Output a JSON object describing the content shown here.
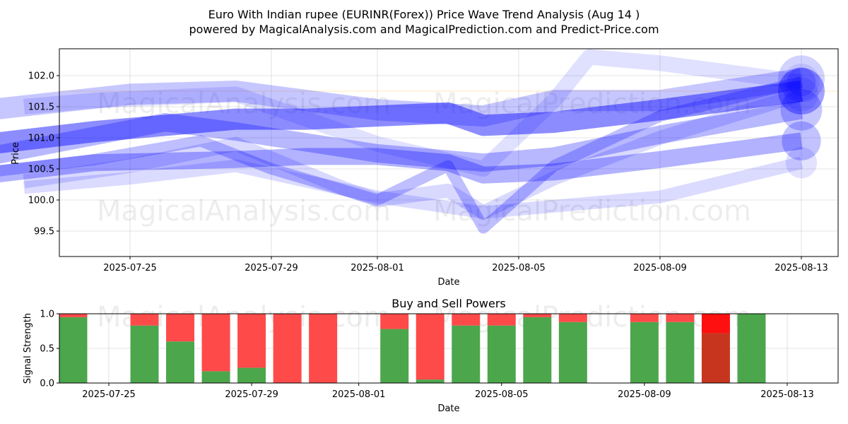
{
  "title_line1": "Euro With Indian rupee (EURINR(Forex)) Price Wave Trend Analysis (Aug 14 )",
  "title_line2": "powered by MagicalAnalysis.com and MagicalPrediction.com and Predict-Price.com",
  "watermarks": [
    "MagicalAnalysis.com",
    "MagicalPrediction.com"
  ],
  "colors": {
    "wave": "#0000ff",
    "buy": "#4ca64c",
    "sell": "#ff4a4a",
    "sell_strong": "#ff1010",
    "buy_strong": "#c8351e"
  },
  "chart_data": [
    {
      "type": "area",
      "title": "",
      "xlabel": "Date",
      "ylabel": "Price",
      "ylim": [
        99.1,
        102.45
      ],
      "xlim": [
        "2025-07-21",
        "2025-08-14"
      ],
      "grid": true,
      "x_ticks": [
        "2025-07-25",
        "2025-07-29",
        "2025-08-01",
        "2025-08-05",
        "2025-08-09",
        "2025-08-13"
      ],
      "y_ticks": [
        99.5,
        100.0,
        100.5,
        101.0,
        101.5,
        102.0
      ],
      "series": [
        {
          "x": [
            "2025-07-21",
            "2025-07-25",
            "2025-07-28",
            "2025-08-01",
            "2025-08-04",
            "2025-08-06",
            "2025-08-09",
            "2025-08-13"
          ],
          "values": [
            101.45,
            101.7,
            101.75,
            101.45,
            101.35,
            101.6,
            101.6,
            101.95
          ]
        },
        {
          "x": [
            "2025-07-21",
            "2025-07-24",
            "2025-07-28",
            "2025-07-30",
            "2025-08-01",
            "2025-08-03",
            "2025-08-04",
            "2025-08-06",
            "2025-08-09",
            "2025-08-13"
          ],
          "values": [
            100.9,
            101.1,
            101.3,
            101.3,
            101.35,
            101.4,
            101.2,
            101.25,
            101.45,
            101.75
          ]
        },
        {
          "x": [
            "2025-07-21",
            "2025-07-26",
            "2025-07-28",
            "2025-08-01",
            "2025-08-04",
            "2025-08-06",
            "2025-08-09",
            "2025-08-13"
          ],
          "values": [
            100.7,
            101.25,
            101.1,
            100.75,
            100.6,
            100.7,
            101.05,
            101.45
          ]
        },
        {
          "x": [
            "2025-07-21",
            "2025-07-24",
            "2025-07-28",
            "2025-07-30",
            "2025-08-01",
            "2025-08-03",
            "2025-08-04",
            "2025-08-06",
            "2025-08-09",
            "2025-08-13"
          ],
          "values": [
            100.4,
            100.6,
            100.65,
            100.7,
            100.7,
            100.6,
            100.4,
            100.45,
            100.65,
            100.95
          ]
        },
        {
          "x": [
            "2025-07-21",
            "2025-07-24",
            "2025-07-27",
            "2025-07-29",
            "2025-08-01",
            "2025-08-03",
            "2025-08-04",
            "2025-08-06",
            "2025-08-09",
            "2025-08-13"
          ],
          "values": [
            100.45,
            100.65,
            100.95,
            100.5,
            100.0,
            100.55,
            99.55,
            100.55,
            101.35,
            101.9
          ]
        },
        {
          "x": [
            "2025-07-22",
            "2025-07-24",
            "2025-07-28",
            "2025-08-01",
            "2025-08-04",
            "2025-08-06",
            "2025-08-07",
            "2025-08-09",
            "2025-08-13"
          ],
          "values": [
            101.5,
            101.6,
            101.7,
            100.9,
            100.5,
            101.6,
            102.3,
            102.2,
            101.9
          ]
        },
        {
          "x": [
            "2025-07-22",
            "2025-07-25",
            "2025-07-28",
            "2025-07-31",
            "2025-08-01",
            "2025-08-03",
            "2025-08-04",
            "2025-08-06",
            "2025-08-09",
            "2025-08-13"
          ],
          "values": [
            100.3,
            100.55,
            100.9,
            100.2,
            100.0,
            100.15,
            99.8,
            100.35,
            101.0,
            101.7
          ]
        },
        {
          "x": [
            "2025-07-22",
            "2025-07-25",
            "2025-07-28",
            "2025-08-01",
            "2025-08-04",
            "2025-08-06",
            "2025-08-09",
            "2025-08-13"
          ],
          "values": [
            100.2,
            100.35,
            100.55,
            100.05,
            99.8,
            99.9,
            100.05,
            100.6
          ]
        }
      ]
    },
    {
      "type": "bar",
      "title": "Buy and Sell Powers",
      "xlabel": "Date",
      "ylabel": "Signal Strength",
      "ylim": [
        0,
        1
      ],
      "grid": true,
      "x_ticks": [
        "2025-07-25",
        "2025-07-29",
        "2025-08-01",
        "2025-08-05",
        "2025-08-09",
        "2025-08-13"
      ],
      "y_ticks": [
        "0.0",
        "0.5",
        "1.0"
      ],
      "categories": [
        "2025-07-24",
        "2025-07-26",
        "2025-07-27",
        "2025-07-28",
        "2025-07-29",
        "2025-07-30",
        "2025-07-31",
        "2025-08-02",
        "2025-08-03",
        "2025-08-04",
        "2025-08-05",
        "2025-08-06",
        "2025-08-07",
        "2025-08-09",
        "2025-08-10",
        "2025-08-11",
        "2025-08-12"
      ],
      "series": [
        {
          "name": "Buy",
          "values": [
            0.95,
            0.83,
            0.6,
            0.17,
            0.22,
            0.0,
            0.0,
            0.78,
            0.05,
            0.83,
            0.83,
            0.95,
            0.88,
            0.88,
            0.88,
            0.72,
            1.0
          ]
        },
        {
          "name": "Sell",
          "values": [
            0.05,
            0.17,
            0.4,
            0.83,
            0.78,
            1.0,
            1.0,
            0.22,
            0.95,
            0.17,
            0.17,
            0.05,
            0.12,
            0.12,
            0.12,
            0.28,
            0.0
          ]
        }
      ],
      "highlight_index": 15
    }
  ]
}
